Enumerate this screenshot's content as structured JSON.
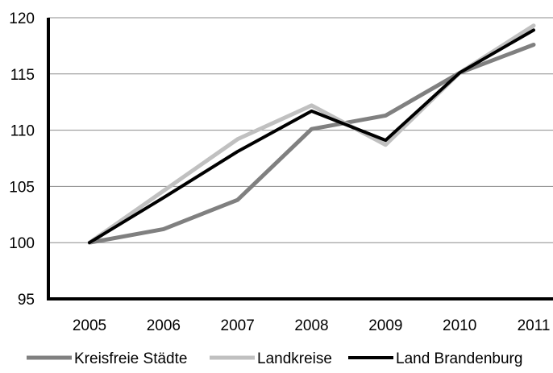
{
  "chart_data": {
    "type": "line",
    "title": "",
    "xlabel": "",
    "ylabel": "",
    "x": [
      "2005",
      "2006",
      "2007",
      "2008",
      "2009",
      "2010",
      "2011"
    ],
    "ylim": [
      95,
      120
    ],
    "yticks": [
      95,
      100,
      105,
      110,
      115,
      120
    ],
    "grid": "horizontal",
    "legend": "bottom",
    "series": [
      {
        "name": "Kreisfreie Städte",
        "color": "#808080",
        "values": [
          100,
          101.2,
          103.8,
          110.1,
          111.3,
          115.1,
          117.6
        ]
      },
      {
        "name": "Landkreise",
        "color": "#c0c0c0",
        "values": [
          100,
          104.6,
          109.2,
          112.2,
          108.7,
          115.1,
          119.3
        ]
      },
      {
        "name": "Land Brandenburg",
        "color": "#000000",
        "values": [
          100,
          104.0,
          108.1,
          111.7,
          109.1,
          115.1,
          118.9
        ]
      }
    ]
  }
}
